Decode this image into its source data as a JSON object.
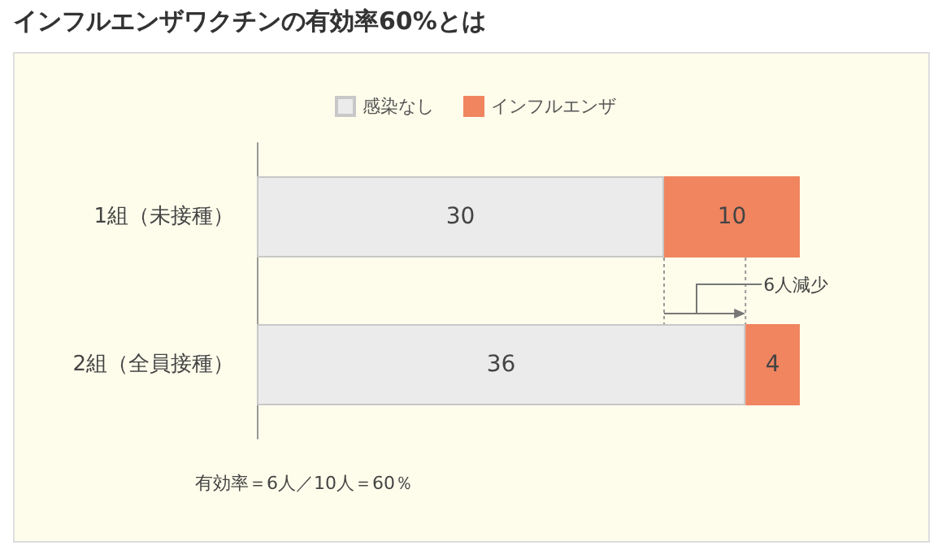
{
  "chart_data": {
    "type": "bar",
    "title": "インフルエンザワクチンの有効率60%とは",
    "orientation": "horizontal",
    "stacked": true,
    "categories": [
      "1組（未接種）",
      "2組（全員接種）"
    ],
    "series": [
      {
        "name": "感染なし",
        "color": "#ebebeb",
        "values": [
          30,
          36
        ]
      },
      {
        "name": "インフルエンザ",
        "color": "#f08560",
        "values": [
          10,
          4
        ]
      }
    ],
    "data_labels": true,
    "legend": "top",
    "annotations": [
      "6人減少",
      "有効率＝6人／10人＝60％"
    ]
  }
}
